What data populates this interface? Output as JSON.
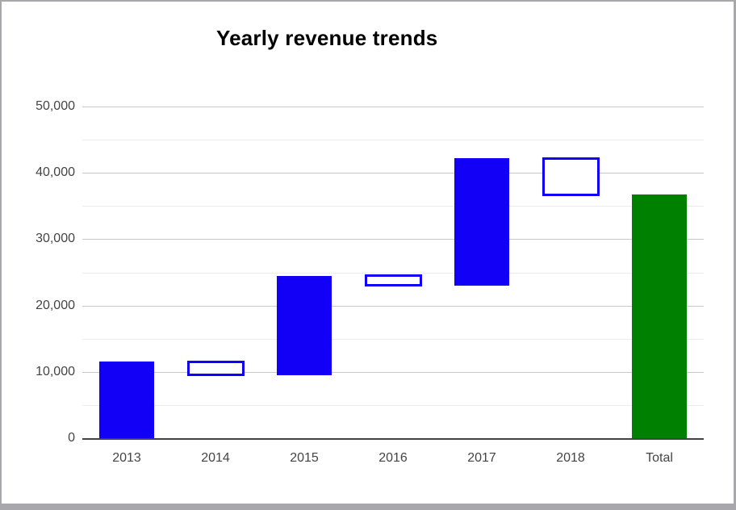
{
  "window": {
    "border_color": "#a7a7ac",
    "background": "#ffffff"
  },
  "chart_data": {
    "type": "waterfall",
    "title": "Yearly revenue trends",
    "legend": "none",
    "grid": true,
    "categories": [
      "2013",
      "2014",
      "2015",
      "2016",
      "2017",
      "2018",
      "Total"
    ],
    "bars": [
      {
        "label": "2013",
        "start": 0,
        "end": 11500,
        "delta": 11500,
        "style": "rise"
      },
      {
        "label": "2014",
        "start": 11500,
        "end": 9500,
        "delta": -2000,
        "style": "fall"
      },
      {
        "label": "2015",
        "start": 9500,
        "end": 24500,
        "delta": 15000,
        "style": "rise"
      },
      {
        "label": "2016",
        "start": 24500,
        "end": 23000,
        "delta": -1500,
        "style": "fall"
      },
      {
        "label": "2017",
        "start": 23000,
        "end": 42200,
        "delta": 19200,
        "style": "rise"
      },
      {
        "label": "2018",
        "start": 42200,
        "end": 36700,
        "delta": -5500,
        "style": "fall"
      },
      {
        "label": "Total",
        "start": 0,
        "end": 36700,
        "delta": 36700,
        "style": "total"
      }
    ],
    "y_axis": {
      "min": 0,
      "max": 50000,
      "major_step": 10000,
      "minor_step": 5000,
      "ticks": [
        {
          "value": 0,
          "label": "0"
        },
        {
          "value": 10000,
          "label": "10,000"
        },
        {
          "value": 20000,
          "label": "20,000"
        },
        {
          "value": 30000,
          "label": "30,000"
        },
        {
          "value": 40000,
          "label": "40,000"
        },
        {
          "value": 50000,
          "label": "50,000"
        }
      ],
      "minor_values": [
        5000,
        15000,
        25000,
        35000,
        45000
      ]
    },
    "colors": {
      "rise_fill": "#1100f5",
      "fall_border": "#1100f5",
      "fall_fill": "#ffffff",
      "total_fill": "#008000",
      "gridline_major": "#c9c9c9",
      "gridline_minor": "#ececec",
      "axis_line": "#424242",
      "tick_text": "#444444",
      "title_text": "#000000"
    }
  }
}
